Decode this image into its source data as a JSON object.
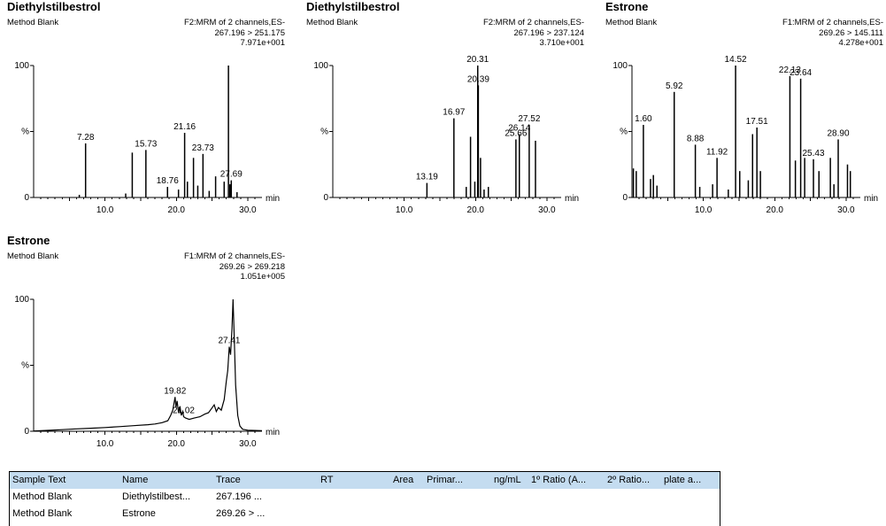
{
  "chart_data": [
    {
      "type": "line",
      "title": "Diethylstilbestrol",
      "subtitle": "Method Blank",
      "function_line": "F2:MRM of 2 channels,ES-",
      "transition": "267.196 > 251.175",
      "max_intensity": "7.971e+001",
      "xlabel": "min",
      "ylabel": "%",
      "xlim": [
        0,
        32
      ],
      "ylim": [
        0,
        100
      ],
      "x_ticks": [
        10.0,
        20.0,
        30.0
      ],
      "x_tick_labels": [
        "10.0",
        "20.0",
        "30.0"
      ],
      "y_tick_labels": [
        "100",
        "%",
        "0"
      ],
      "peaks": [
        {
          "x": 6.4,
          "y": 2
        },
        {
          "x": 7.28,
          "y": 41,
          "label": "7.28"
        },
        {
          "x": 12.9,
          "y": 3
        },
        {
          "x": 13.82,
          "y": 34
        },
        {
          "x": 15.73,
          "y": 36,
          "label": "15.73"
        },
        {
          "x": 18.76,
          "y": 8,
          "label": "18.76"
        },
        {
          "x": 20.3,
          "y": 6
        },
        {
          "x": 21.16,
          "y": 49,
          "label": "21.16"
        },
        {
          "x": 21.55,
          "y": 12
        },
        {
          "x": 22.4,
          "y": 30
        },
        {
          "x": 23.0,
          "y": 9
        },
        {
          "x": 23.73,
          "y": 33,
          "label": "23.73"
        },
        {
          "x": 24.6,
          "y": 5
        },
        {
          "x": 25.5,
          "y": 16
        },
        {
          "x": 26.7,
          "y": 12
        },
        {
          "x": 27.3,
          "y": 100
        },
        {
          "x": 27.5,
          "y": 10
        },
        {
          "x": 27.69,
          "y": 13,
          "label": "27.69"
        },
        {
          "x": 28.5,
          "y": 4
        }
      ]
    },
    {
      "type": "line",
      "title": "Diethylstilbestrol",
      "subtitle": "Method Blank",
      "function_line": "F2:MRM of 2 channels,ES-",
      "transition": "267.196 > 237.124",
      "max_intensity": "3.710e+001",
      "xlabel": "min",
      "ylabel": "%",
      "xlim": [
        0,
        32
      ],
      "ylim": [
        0,
        100
      ],
      "x_ticks": [
        10.0,
        20.0,
        30.0
      ],
      "x_tick_labels": [
        "10.0",
        "20.0",
        "30.0"
      ],
      "y_tick_labels": [
        "100",
        "%",
        "0"
      ],
      "peaks": [
        {
          "x": 13.19,
          "y": 11,
          "label": "13.19"
        },
        {
          "x": 16.97,
          "y": 60,
          "label": "16.97"
        },
        {
          "x": 18.7,
          "y": 8
        },
        {
          "x": 19.3,
          "y": 46
        },
        {
          "x": 19.9,
          "y": 12
        },
        {
          "x": 20.31,
          "y": 100,
          "label": "20.31"
        },
        {
          "x": 20.39,
          "y": 85,
          "label": "20.39"
        },
        {
          "x": 20.7,
          "y": 30
        },
        {
          "x": 21.2,
          "y": 6
        },
        {
          "x": 21.8,
          "y": 8
        },
        {
          "x": 25.66,
          "y": 44,
          "label": "25.66"
        },
        {
          "x": 26.14,
          "y": 48,
          "label": "26.14"
        },
        {
          "x": 27.52,
          "y": 55,
          "label": "27.52"
        },
        {
          "x": 28.4,
          "y": 43
        }
      ]
    },
    {
      "type": "line",
      "title": "Estrone",
      "subtitle": "Method Blank",
      "function_line": "F1:MRM of 2 channels,ES-",
      "transition": "269.26 > 145.111",
      "max_intensity": "4.278e+001",
      "xlabel": "min",
      "ylabel": "%",
      "xlim": [
        0,
        32
      ],
      "ylim": [
        0,
        100
      ],
      "x_ticks": [
        10.0,
        20.0,
        30.0
      ],
      "x_tick_labels": [
        "10.0",
        "20.0",
        "30.0"
      ],
      "y_tick_labels": [
        "100",
        "%",
        "0"
      ],
      "peaks": [
        {
          "x": 0.2,
          "y": 22
        },
        {
          "x": 0.6,
          "y": 20
        },
        {
          "x": 1.6,
          "y": 55,
          "label": "1.60"
        },
        {
          "x": 2.6,
          "y": 14
        },
        {
          "x": 3.0,
          "y": 17
        },
        {
          "x": 3.5,
          "y": 9
        },
        {
          "x": 5.92,
          "y": 80,
          "label": "5.92"
        },
        {
          "x": 8.88,
          "y": 40,
          "label": "8.88"
        },
        {
          "x": 9.5,
          "y": 8
        },
        {
          "x": 11.3,
          "y": 10
        },
        {
          "x": 11.92,
          "y": 30,
          "label": "11.92"
        },
        {
          "x": 13.5,
          "y": 6
        },
        {
          "x": 14.52,
          "y": 100,
          "label": "14.52"
        },
        {
          "x": 15.1,
          "y": 20
        },
        {
          "x": 16.3,
          "y": 13
        },
        {
          "x": 16.9,
          "y": 48
        },
        {
          "x": 17.51,
          "y": 53,
          "label": "17.51"
        },
        {
          "x": 18.0,
          "y": 20
        },
        {
          "x": 22.13,
          "y": 92,
          "label": "22.13"
        },
        {
          "x": 22.9,
          "y": 28
        },
        {
          "x": 23.64,
          "y": 90,
          "label": "23.64"
        },
        {
          "x": 24.2,
          "y": 30
        },
        {
          "x": 25.43,
          "y": 29,
          "label": "25.43"
        },
        {
          "x": 26.2,
          "y": 20
        },
        {
          "x": 27.8,
          "y": 30
        },
        {
          "x": 28.3,
          "y": 10
        },
        {
          "x": 28.9,
          "y": 44,
          "label": "28.90"
        },
        {
          "x": 30.2,
          "y": 25
        },
        {
          "x": 30.6,
          "y": 20
        }
      ]
    },
    {
      "type": "line",
      "title": "Estrone",
      "subtitle": "Method Blank",
      "function_line": "F1:MRM of 2 channels,ES-",
      "transition": "269.26 > 269.218",
      "max_intensity": "1.051e+005",
      "xlabel": "min",
      "ylabel": "%",
      "xlim": [
        0,
        32
      ],
      "ylim": [
        0,
        100
      ],
      "x_ticks": [
        10.0,
        20.0,
        30.0
      ],
      "x_tick_labels": [
        "10.0",
        "20.0",
        "30.0"
      ],
      "y_tick_labels": [
        "100",
        "%",
        "0"
      ],
      "trace": [
        [
          0,
          0.2
        ],
        [
          2,
          0.7
        ],
        [
          4,
          1.2
        ],
        [
          6,
          1.8
        ],
        [
          8,
          2.3
        ],
        [
          10,
          2.8
        ],
        [
          12,
          3.5
        ],
        [
          14,
          4.2
        ],
        [
          16,
          5
        ],
        [
          17,
          5.5
        ],
        [
          18,
          6.5
        ],
        [
          18.8,
          8
        ],
        [
          19.2,
          12
        ],
        [
          19.5,
          16
        ],
        [
          19.7,
          22
        ],
        [
          19.82,
          26
        ],
        [
          19.95,
          18
        ],
        [
          20.1,
          23
        ],
        [
          20.3,
          14
        ],
        [
          20.5,
          19
        ],
        [
          20.7,
          12
        ],
        [
          20.9,
          15
        ],
        [
          21.02,
          11
        ],
        [
          21.3,
          10
        ],
        [
          21.8,
          9
        ],
        [
          22.5,
          10
        ],
        [
          23.3,
          11
        ],
        [
          24,
          13
        ],
        [
          24.5,
          14
        ],
        [
          24.9,
          17
        ],
        [
          25.3,
          20
        ],
        [
          25.6,
          15
        ],
        [
          25.9,
          18
        ],
        [
          26.3,
          16
        ],
        [
          26.7,
          24
        ],
        [
          27.0,
          38
        ],
        [
          27.2,
          46
        ],
        [
          27.41,
          64
        ],
        [
          27.6,
          58
        ],
        [
          27.8,
          78
        ],
        [
          27.95,
          100
        ],
        [
          28.1,
          72
        ],
        [
          28.3,
          35
        ],
        [
          28.6,
          12
        ],
        [
          28.9,
          4
        ],
        [
          29.3,
          1.5
        ],
        [
          30,
          0.8
        ],
        [
          32,
          0.5
        ]
      ],
      "peaks": [
        {
          "x": 19.82,
          "y": 26,
          "label": "19.82"
        },
        {
          "x": 21.02,
          "y": 11,
          "label": "21.02"
        },
        {
          "x": 27.41,
          "y": 64,
          "label": "27.41"
        }
      ]
    }
  ],
  "results_table": {
    "headers": [
      "Sample Text",
      "Name",
      "Trace",
      "RT",
      "Area",
      "Primar...",
      "ng/mL",
      "1º Ratio (A...",
      "2º Ratio...",
      "plate a..."
    ],
    "rows": [
      [
        "Method Blank",
        "Diethylstilbest...",
        "267.196 ...",
        "",
        "",
        "",
        "",
        "",
        "",
        ""
      ],
      [
        "Method Blank",
        "Estrone",
        "269.26 > ...",
        "",
        "",
        "",
        "",
        "",
        "",
        ""
      ]
    ]
  },
  "colors": {
    "trace": "#000000",
    "table_header_bg": "#c4dcf0"
  }
}
